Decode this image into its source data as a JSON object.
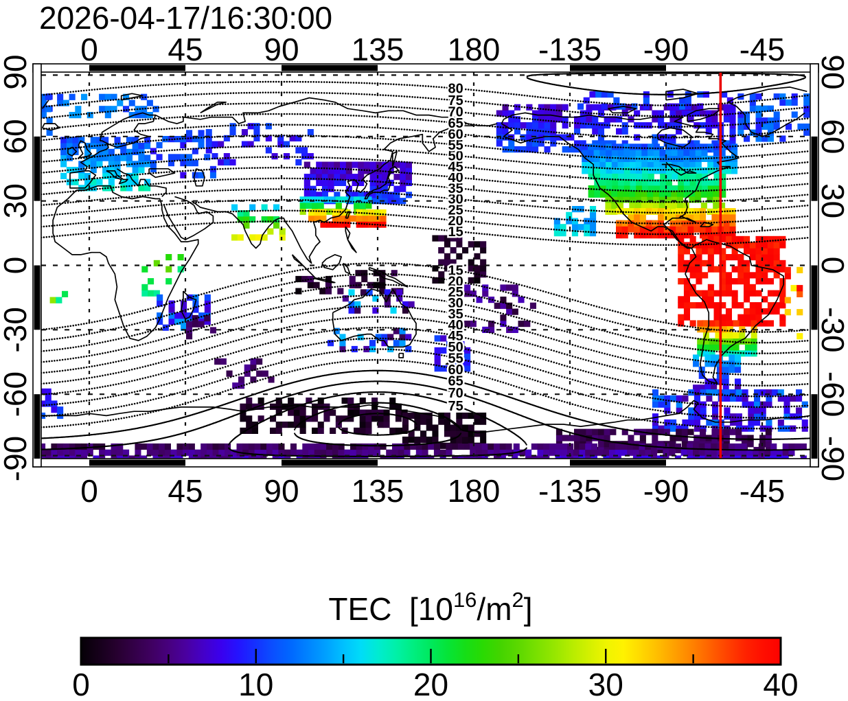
{
  "title": "2026-04-17/16:30:00",
  "axes": {
    "lon_ticks": [
      "0",
      "45",
      "90",
      "135",
      "180",
      "-135",
      "-90",
      "-45"
    ],
    "lon_tick_values": [
      0,
      45,
      90,
      135,
      180,
      225,
      270,
      315
    ],
    "lat_ticks": [
      "90",
      "60",
      "30",
      "0",
      "-30",
      "-60",
      "-90"
    ],
    "lat_tick_values": [
      90,
      60,
      30,
      0,
      -30,
      -60,
      -90
    ]
  },
  "map": {
    "lon_min": -22.5,
    "lon_max": 337.5,
    "lat_min": -90,
    "lat_max": 90,
    "red_line_lon": -64.5,
    "red_line_color": "#ea0000",
    "grid_lat_lines": [
      88.6,
      60,
      30,
      0,
      -30,
      -60,
      -88.6
    ],
    "grid_lon_lines": [
      0,
      45,
      90,
      135,
      180,
      225,
      270,
      315
    ]
  },
  "contours": {
    "interval_deg": 5,
    "north_pole": {
      "lat": 84.5,
      "lon": -90
    },
    "south_pole": {
      "lat": -74,
      "lon": 135
    },
    "north_dotted": [
      15,
      20,
      25,
      30,
      35,
      40,
      45,
      50,
      55,
      60,
      65,
      70,
      75,
      80
    ],
    "north_solid": [
      85
    ],
    "south_dotted": [
      15,
      20,
      25,
      30,
      35,
      40,
      45,
      50,
      55,
      60
    ],
    "south_solid": [
      65,
      70,
      75,
      80,
      85
    ],
    "north_labels": [
      15,
      20,
      25,
      30,
      35,
      40,
      45,
      50,
      55,
      60,
      65,
      70,
      75,
      80
    ],
    "south_labels": [
      15,
      20,
      25,
      30,
      35,
      40,
      45,
      50,
      55,
      60,
      65,
      70,
      75
    ],
    "label_lon": 171.5
  },
  "colorbar": {
    "title_parts": {
      "prefix": "TEC  [10",
      "sup1": "16",
      "mid": "/m",
      "sup2": "2",
      "suffix": "]"
    },
    "tick_labels": [
      "0",
      "10",
      "20",
      "30",
      "40"
    ],
    "tick_values": [
      0,
      10,
      20,
      30,
      40
    ],
    "minor_ticks": [
      5,
      15,
      25,
      35
    ],
    "major_inner_ticks": [
      10,
      20,
      30
    ],
    "range": [
      0,
      40
    ],
    "stops": [
      [
        0,
        "#050006"
      ],
      [
        2,
        "#26002e"
      ],
      [
        4,
        "#3f0060"
      ],
      [
        5,
        "#47007e"
      ],
      [
        6,
        "#4a00a0"
      ],
      [
        7,
        "#4400c8"
      ],
      [
        8,
        "#3a00ee"
      ],
      [
        9,
        "#2414ff"
      ],
      [
        10,
        "#1432ff"
      ],
      [
        11,
        "#0a50ff"
      ],
      [
        12,
        "#0068ff"
      ],
      [
        13,
        "#0084ff"
      ],
      [
        14,
        "#00a0ff"
      ],
      [
        15,
        "#00c0ff"
      ],
      [
        16,
        "#00dcf8"
      ],
      [
        17,
        "#00ecd0"
      ],
      [
        18,
        "#00f0a8"
      ],
      [
        19,
        "#00ee80"
      ],
      [
        20,
        "#00e85c"
      ],
      [
        21,
        "#06e436"
      ],
      [
        22,
        "#16de16"
      ],
      [
        23,
        "#2ada02"
      ],
      [
        24,
        "#44d400"
      ],
      [
        25,
        "#5cd800"
      ],
      [
        26,
        "#78e000"
      ],
      [
        27,
        "#94e600"
      ],
      [
        28,
        "#b4ec00"
      ],
      [
        29,
        "#d2f000"
      ],
      [
        30,
        "#eef400"
      ],
      [
        31,
        "#fff200"
      ],
      [
        32,
        "#ffd800"
      ],
      [
        33,
        "#ffbc00"
      ],
      [
        34,
        "#ff9e00"
      ],
      [
        35,
        "#ff8000"
      ],
      [
        36,
        "#ff6000"
      ],
      [
        37,
        "#ff4000"
      ],
      [
        38,
        "#ff2200"
      ],
      [
        39,
        "#ff0e00"
      ],
      [
        40,
        "#fc0200"
      ]
    ]
  },
  "chart_data": {
    "type": "heatmap",
    "title": "2026-04-17/16:30:00",
    "value_label": "TEC [10^16/m^2]",
    "value_range": [
      0,
      40
    ],
    "lon_range": [
      -22.5,
      337.5
    ],
    "lat_range": [
      -90,
      90
    ],
    "cell_size_deg": 2.8,
    "clusters": [
      {
        "name": "canada-alaska",
        "lon": [
          -168,
          -58
        ],
        "lat": [
          54,
          74
        ],
        "tec": [
          7,
          11
        ],
        "mode": "gradient",
        "density": 0.62
      },
      {
        "name": "arctic-canada",
        "lon": [
          -130,
          -58
        ],
        "lat": [
          74,
          82
        ],
        "tec": [
          8,
          12
        ],
        "mode": "scatter",
        "density": 0.38
      },
      {
        "name": "us-canada-mid",
        "lon": [
          -128,
          -58
        ],
        "lat": [
          44,
          56
        ],
        "tec": [
          11,
          16
        ],
        "mode": "gradient",
        "density": 0.9
      },
      {
        "name": "us",
        "lon": [
          -125,
          -62
        ],
        "lat": [
          33,
          45
        ],
        "tec": [
          16,
          22
        ],
        "mode": "gradient",
        "density": 0.93
      },
      {
        "name": "us-south-mexico",
        "lon": [
          -117,
          -62
        ],
        "lat": [
          25,
          34
        ],
        "tec": [
          22,
          30
        ],
        "mode": "gradient",
        "density": 0.9
      },
      {
        "name": "mexico-caribbean",
        "lon": [
          -112,
          -58
        ],
        "lat": [
          14,
          26
        ],
        "tec": [
          31,
          40
        ],
        "mode": "gradient",
        "density": 0.88
      },
      {
        "name": "south-america-north",
        "lon": [
          -83,
          -33
        ],
        "lat": [
          -27,
          13
        ],
        "tec": [
          39,
          40
        ],
        "mode": "gradient",
        "density": 0.72
      },
      {
        "name": "atlantic-red-scatter",
        "lon": [
          -33,
          -27
        ],
        "lat": [
          -33,
          -2
        ],
        "tec": [
          30,
          40
        ],
        "mode": "scatter",
        "density": 0.3
      },
      {
        "name": "south-america-mid",
        "lon": [
          -74,
          -47
        ],
        "lat": [
          -41,
          -27
        ],
        "tec": [
          37,
          17
        ],
        "mode": "gradient",
        "density": 0.85
      },
      {
        "name": "patagonia",
        "lon": [
          -76,
          -56
        ],
        "lat": [
          -57,
          -41
        ],
        "tec": [
          16,
          7
        ],
        "mode": "gradient",
        "density": 0.7
      },
      {
        "name": "europe",
        "lon": [
          -12,
          30
        ],
        "lat": [
          36,
          61
        ],
        "tec": [
          10,
          17
        ],
        "mode": "gradient",
        "density": 0.72
      },
      {
        "name": "east-europe",
        "lon": [
          30,
          60
        ],
        "lat": [
          42,
          62
        ],
        "tec": [
          8,
          12
        ],
        "mode": "scatter",
        "density": 0.3
      },
      {
        "name": "siberia",
        "lon": [
          56,
          104
        ],
        "lat": [
          48,
          66
        ],
        "tec": [
          7,
          11
        ],
        "mode": "scatter",
        "density": 0.32
      },
      {
        "name": "northeast-asia",
        "lon": [
          102,
          152
        ],
        "lat": [
          30,
          49
        ],
        "tec": [
          6,
          10
        ],
        "mode": "gradient",
        "density": 0.78
      },
      {
        "name": "china-green-band",
        "lon": [
          100,
          132
        ],
        "lat": [
          25,
          31
        ],
        "tec": [
          15,
          27
        ],
        "mode": "gradient",
        "density": 0.8
      },
      {
        "name": "china-red-band",
        "lon": [
          104,
          140
        ],
        "lat": [
          19,
          25
        ],
        "tec": [
          30,
          40
        ],
        "mode": "gradient",
        "density": 0.8
      },
      {
        "name": "india",
        "lon": [
          68,
          92
        ],
        "lat": [
          13,
          28
        ],
        "tec": [
          15,
          30
        ],
        "mode": "gradient",
        "density": 0.5
      },
      {
        "name": "east-africa",
        "lon": [
          26,
          43
        ],
        "lat": [
          -13,
          4
        ],
        "tec": [
          17,
          27
        ],
        "mode": "scatter",
        "density": 0.4
      },
      {
        "name": "mozambique-madagascar",
        "lon": [
          33,
          57
        ],
        "lat": [
          -29,
          -14
        ],
        "tec": [
          7,
          14
        ],
        "mode": "scatter",
        "density": 0.5
      },
      {
        "name": "indian-ocean-purple",
        "lon": [
          44,
          58
        ],
        "lat": [
          -33,
          -23
        ],
        "tec": [
          3,
          6
        ],
        "mode": "scatter",
        "density": 0.35
      },
      {
        "name": "south-atlantic-spots",
        "lon": [
          -17,
          -6
        ],
        "lat": [
          -19,
          -8
        ],
        "tec": [
          18,
          30
        ],
        "mode": "scatter",
        "density": 0.25
      },
      {
        "name": "indonesia-dark",
        "lon": [
          98,
          148
        ],
        "lat": [
          -12,
          -3
        ],
        "tec": [
          0,
          4
        ],
        "mode": "scatter",
        "density": 0.38
      },
      {
        "name": "australia-north",
        "lon": [
          120,
          152
        ],
        "lat": [
          -21,
          -10
        ],
        "tec": [
          2,
          16
        ],
        "mode": "scatter",
        "density": 0.4
      },
      {
        "name": "australia-south",
        "lon": [
          113,
          152
        ],
        "lat": [
          -39,
          -29
        ],
        "tec": [
          3,
          15
        ],
        "mode": "scatter",
        "density": 0.45
      },
      {
        "name": "new-zealand",
        "lon": [
          163,
          180
        ],
        "lat": [
          -48,
          -33
        ],
        "tec": [
          7,
          11
        ],
        "mode": "scatter",
        "density": 0.5
      },
      {
        "name": "dateline-equator-dark",
        "lon": [
          162,
          186
        ],
        "lat": [
          -7,
          13
        ],
        "tec": [
          0,
          3
        ],
        "mode": "scatter",
        "density": 0.5
      },
      {
        "name": "southwest-pacific",
        "lon": [
          177,
          208
        ],
        "lat": [
          -30,
          -9
        ],
        "tec": [
          2,
          7
        ],
        "mode": "scatter",
        "density": 0.3
      },
      {
        "name": "east-pacific-cyan",
        "lon": [
          -141,
          -124
        ],
        "lat": [
          15,
          27
        ],
        "tec": [
          13,
          17
        ],
        "mode": "scatter",
        "density": 0.45
      },
      {
        "name": "greenland",
        "lon": [
          -55,
          -18
        ],
        "lat": [
          59,
          79
        ],
        "tec": [
          9,
          13
        ],
        "mode": "scatter",
        "density": 0.45
      },
      {
        "name": "arctic-europe",
        "lon": [
          -22,
          34
        ],
        "lat": [
          70,
          81
        ],
        "tec": [
          10,
          14
        ],
        "mode": "scatter",
        "density": 0.4
      },
      {
        "name": "kerguelen",
        "lon": [
          60,
          90
        ],
        "lat": [
          -56,
          -44
        ],
        "tec": [
          3,
          6
        ],
        "mode": "scatter",
        "density": 0.25
      },
      {
        "name": "antarctic-peninsula",
        "lon": [
          -95,
          -25
        ],
        "lat": [
          -76,
          -59
        ],
        "tec": [
          6,
          13
        ],
        "mode": "scatter",
        "density": 0.6
      },
      {
        "name": "antarctic-band-americas",
        "lon": [
          -140,
          -40
        ],
        "lat": [
          -86,
          -75
        ],
        "tec": [
          2,
          5
        ],
        "mode": "scatter",
        "density": 0.7
      },
      {
        "name": "antarctic-dark-indian",
        "lon": [
          72,
          148
        ],
        "lat": [
          -77,
          -62
        ],
        "tec": [
          0,
          3
        ],
        "mode": "scatter",
        "density": 0.5
      },
      {
        "name": "antarctic-black-ross",
        "lon": [
          148,
          186
        ],
        "lat": [
          -84,
          -68
        ],
        "tec": [
          0,
          2
        ],
        "mode": "scatter",
        "density": 0.7
      },
      {
        "name": "antarctic-bottom-band",
        "lon": [
          -22,
          200
        ],
        "lat": [
          -90,
          -83
        ],
        "tec": [
          3,
          6
        ],
        "mode": "gradient",
        "density": 0.85
      },
      {
        "name": "antarctic-bottom-band-east",
        "lon": [
          200,
          337
        ],
        "lat": [
          -90,
          -83
        ],
        "tec": [
          4,
          7
        ],
        "mode": "gradient",
        "density": 0.8
      },
      {
        "name": "south-atlantic-edge-blue",
        "lon": [
          -22,
          -11
        ],
        "lat": [
          -70,
          -57
        ],
        "tec": [
          7,
          10
        ],
        "mode": "gradient",
        "density": 0.6
      }
    ]
  }
}
